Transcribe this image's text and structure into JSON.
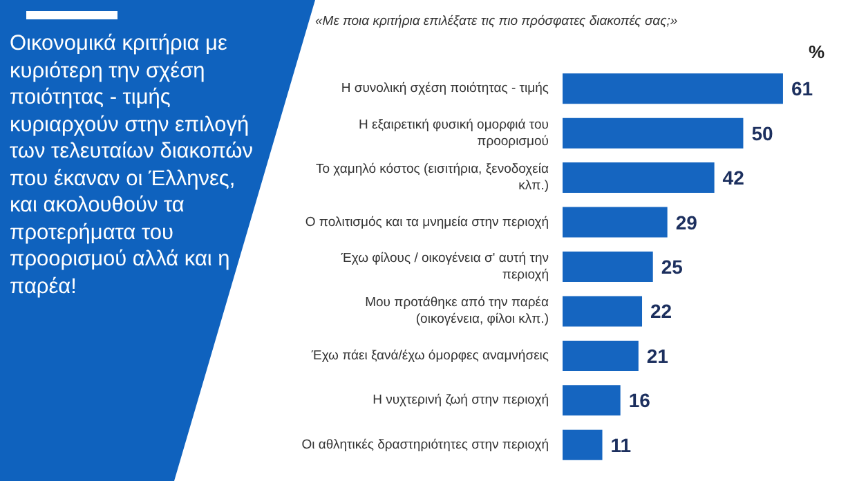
{
  "chart_data": {
    "type": "bar",
    "orientation": "horizontal",
    "title": "Οικονομικά κριτήρια με κυριότερη την σχέση ποιότητας - τιμής κυριαρχούν στην επιλογή των τελευταίων διακοπών που έκαναν οι Έλληνες, και ακολουθούν τα προτερήματα του προορισμού αλλά και η παρέα!",
    "subtitle": "«Με ποια κριτήρια επιλέξατε τις πιο πρόσφατες διακοπές σας;»",
    "xlabel": "%",
    "categories": [
      "Η συνολική σχέση ποιότητας - τιμής",
      "Η εξαιρετική φυσική ομορφιά του προορισμού",
      "Το χαμηλό κόστος (εισιτήρια, ξενοδοχεία κλπ.)",
      "Ο πολιτισμός και τα μνημεία στην περιοχή",
      "Έχω φίλους / οικογένεια σ' αυτή την περιοχή",
      "Μου προτάθηκε από την παρέα (οικογένεια, φίλοι κλπ.)",
      "Έχω πάει ξανά/έχω όμορφες αναμνήσεις",
      "Η νυχτερινή ζωή στην περιοχή",
      "Οι αθλητικές δραστηριότητες στην περιοχή"
    ],
    "values": [
      61,
      50,
      42,
      29,
      25,
      22,
      21,
      16,
      11
    ],
    "color": "#1565c0",
    "data_labels": true,
    "tick_labels": "y"
  }
}
